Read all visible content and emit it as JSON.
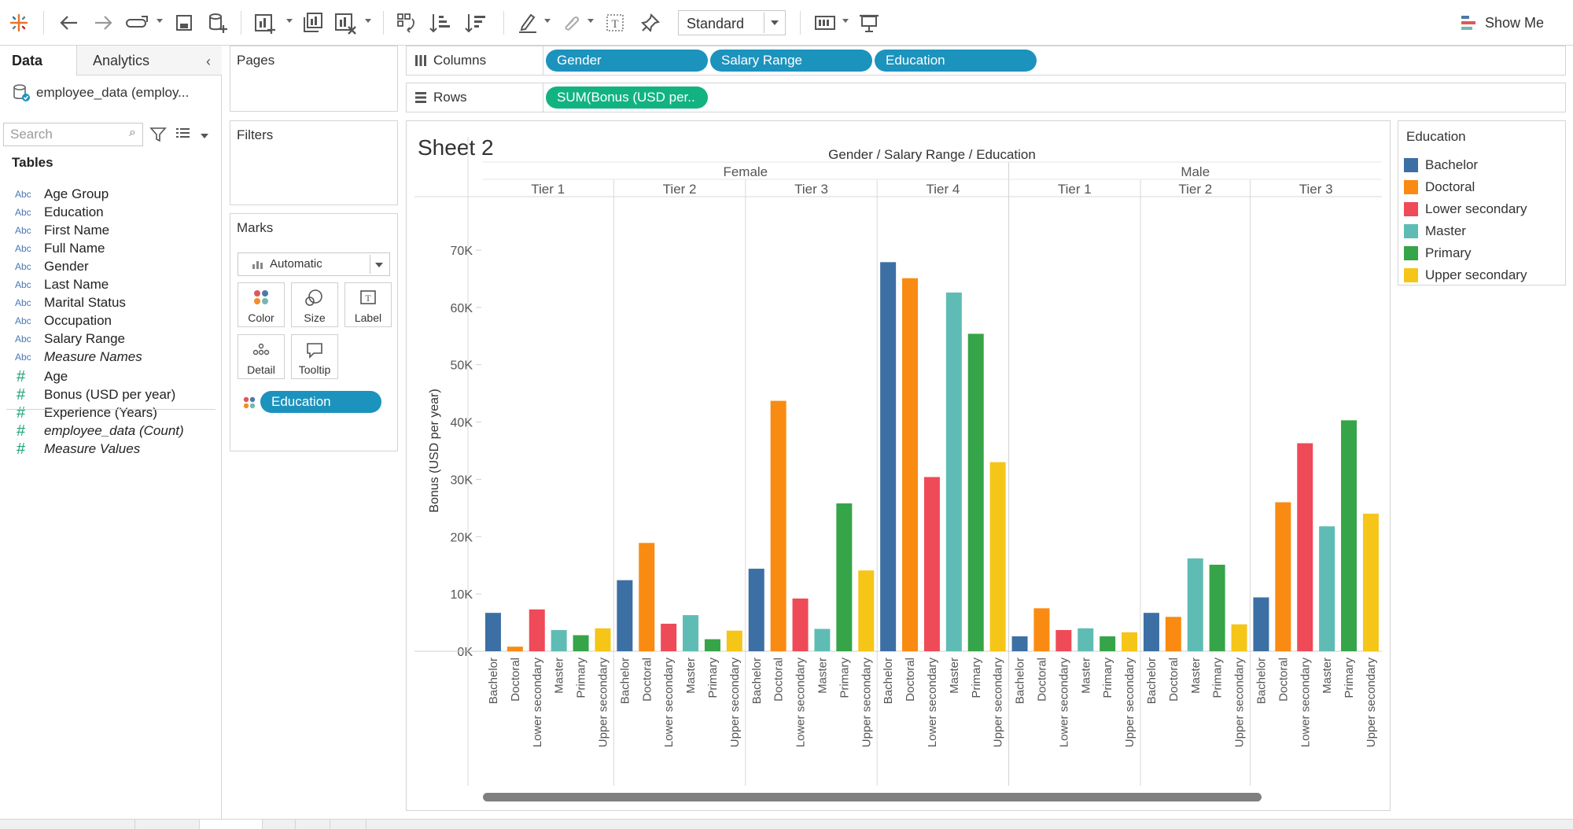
{
  "toolbar": {
    "fit_select": "Standard",
    "show_me": "Show Me"
  },
  "data_pane": {
    "tabs": [
      "Data",
      "Analytics"
    ],
    "datasource": "employee_data (employ...",
    "search_placeholder": "Search",
    "tables_heading": "Tables",
    "dimensions": [
      {
        "type": "Abc",
        "name": "Age Group",
        "italic": false
      },
      {
        "type": "Abc",
        "name": "Education",
        "italic": false
      },
      {
        "type": "Abc",
        "name": "First Name",
        "italic": false
      },
      {
        "type": "Abc",
        "name": "Full Name",
        "italic": false
      },
      {
        "type": "Abc",
        "name": "Gender",
        "italic": false
      },
      {
        "type": "Abc",
        "name": "Last Name",
        "italic": false
      },
      {
        "type": "Abc",
        "name": "Marital Status",
        "italic": false
      },
      {
        "type": "Abc",
        "name": "Occupation",
        "italic": false
      },
      {
        "type": "Abc",
        "name": "Salary Range",
        "italic": false
      },
      {
        "type": "Abc",
        "name": "Measure Names",
        "italic": true
      }
    ],
    "measures": [
      {
        "type": "#",
        "name": "Age",
        "italic": false
      },
      {
        "type": "#",
        "name": "Bonus (USD per year)",
        "italic": false
      },
      {
        "type": "#",
        "name": "Experience (Years)",
        "italic": false
      },
      {
        "type": "#",
        "name": "employee_data (Count)",
        "italic": true
      },
      {
        "type": "#",
        "name": "Measure Values",
        "italic": true
      }
    ]
  },
  "cards": {
    "pages": "Pages",
    "filters": "Filters",
    "marks": "Marks",
    "mark_type": "Automatic",
    "mark_buttons": [
      "Color",
      "Size",
      "Label",
      "Detail",
      "Tooltip"
    ],
    "marks_pill": "Education"
  },
  "shelves": {
    "columns_label": "Columns",
    "rows_label": "Rows",
    "columns_pills": [
      "Gender",
      "Salary Range",
      "Education"
    ],
    "rows_pills": [
      "SUM(Bonus (USD per.."
    ]
  },
  "sheet": {
    "title": "Sheet 2"
  },
  "legend": {
    "title": "Education",
    "items": [
      {
        "label": "Bachelor",
        "color": "#3c6fa4"
      },
      {
        "label": "Doctoral",
        "color": "#f98b12"
      },
      {
        "label": "Lower secondary",
        "color": "#ef4a57"
      },
      {
        "label": "Master",
        "color": "#5fbcb4"
      },
      {
        "label": "Primary",
        "color": "#36a448"
      },
      {
        "label": "Upper secondary",
        "color": "#f5c518"
      }
    ]
  },
  "chart_data": {
    "type": "bar",
    "header_title": "Gender / Salary Range / Education",
    "ylabel": "Bonus (USD per year)",
    "ylim": [
      0,
      70000
    ],
    "y_ticks": [
      "0K",
      "10K",
      "20K",
      "30K",
      "40K",
      "50K",
      "60K",
      "70K"
    ],
    "groups": [
      {
        "gender": "Female",
        "tiers": [
          {
            "tier": "Tier 1",
            "categories": [
              "Bachelor",
              "Doctoral",
              "Lower secondary",
              "Master",
              "Primary",
              "Upper secondary"
            ],
            "values": [
              6700,
              800,
              7300,
              3700,
              2800,
              4000
            ]
          },
          {
            "tier": "Tier 2",
            "categories": [
              "Bachelor",
              "Doctoral",
              "Lower secondary",
              "Master",
              "Primary",
              "Upper secondary"
            ],
            "values": [
              12400,
              18900,
              4800,
              6300,
              2100,
              3600
            ]
          },
          {
            "tier": "Tier 3",
            "categories": [
              "Bachelor",
              "Doctoral",
              "Lower secondary",
              "Master",
              "Primary",
              "Upper secondary"
            ],
            "values": [
              14400,
              43700,
              9200,
              3900,
              25800,
              14100
            ]
          },
          {
            "tier": "Tier 4",
            "categories": [
              "Bachelor",
              "Doctoral",
              "Lower secondary",
              "Master",
              "Primary",
              "Upper secondary"
            ],
            "values": [
              67900,
              65100,
              30400,
              62600,
              55400,
              33000
            ]
          }
        ]
      },
      {
        "gender": "Male",
        "tiers": [
          {
            "tier": "Tier 1",
            "categories": [
              "Bachelor",
              "Doctoral",
              "Lower secondary",
              "Master",
              "Primary",
              "Upper secondary"
            ],
            "values": [
              2600,
              7500,
              3700,
              4000,
              2600,
              3300
            ]
          },
          {
            "tier": "Tier 2",
            "categories": [
              "Bachelor",
              "Doctoral",
              "Master",
              "Primary",
              "Upper secondary"
            ],
            "values": [
              6700,
              6000,
              16200,
              15100,
              4700
            ]
          },
          {
            "tier": "Tier 3",
            "categories": [
              "Bachelor",
              "Doctoral",
              "Lower secondary",
              "Master",
              "Primary",
              "Upper secondary"
            ],
            "values": [
              9400,
              26000,
              36300,
              21800,
              40300,
              24000
            ]
          }
        ]
      }
    ]
  }
}
